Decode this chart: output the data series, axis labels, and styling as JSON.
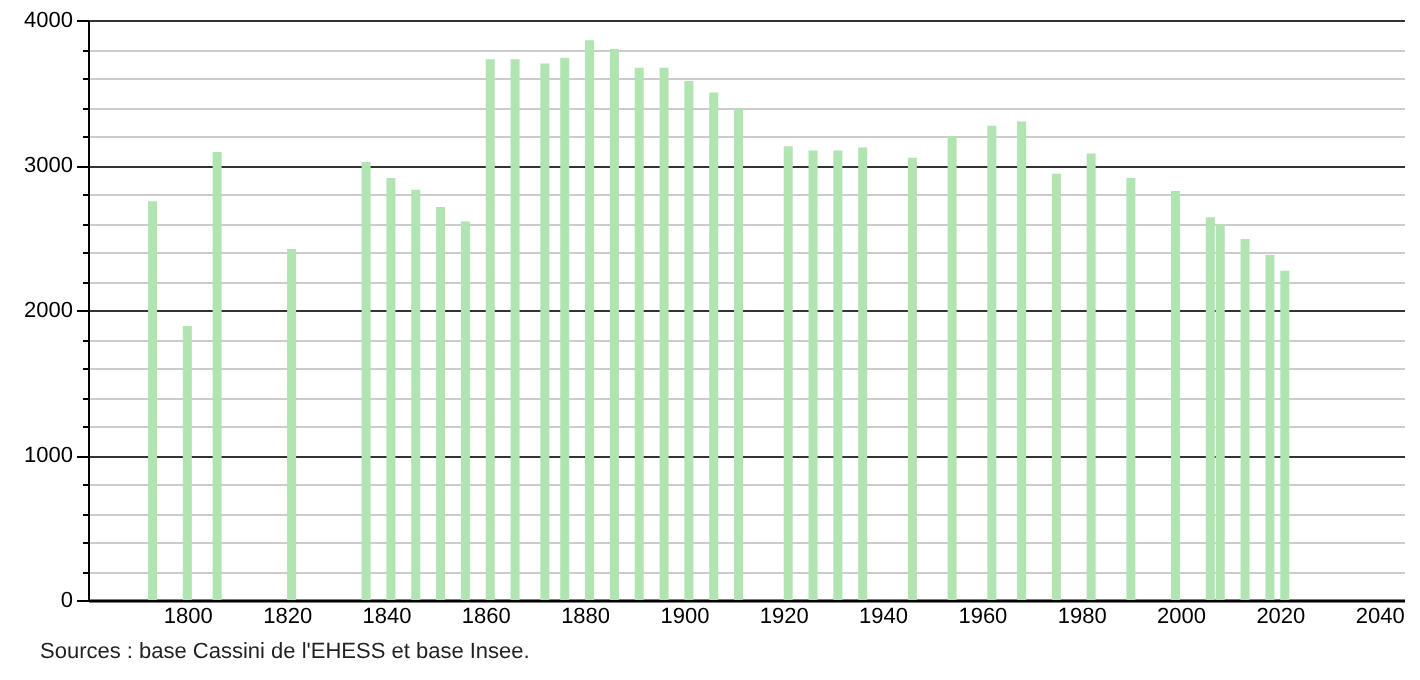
{
  "chart_data": {
    "type": "bar",
    "x": [
      1793,
      1800,
      1806,
      1821,
      1836,
      1841,
      1846,
      1851,
      1856,
      1861,
      1866,
      1872,
      1876,
      1881,
      1886,
      1891,
      1896,
      1901,
      1906,
      1911,
      1921,
      1926,
      1931,
      1936,
      1946,
      1954,
      1962,
      1968,
      1975,
      1982,
      1990,
      1999,
      2006,
      2008,
      2013,
      2018,
      2021
    ],
    "values": [
      2750,
      1890,
      3090,
      2420,
      3020,
      2910,
      2830,
      2710,
      2610,
      3730,
      3730,
      3700,
      3740,
      3860,
      3800,
      3670,
      3670,
      3580,
      3500,
      3390,
      3130,
      3100,
      3100,
      3120,
      3050,
      3200,
      3270,
      3300,
      2940,
      3080,
      2910,
      2820,
      2640,
      2590,
      2490,
      2380,
      2270
    ],
    "color": "#b0e4b0",
    "xlim": [
      1780,
      2045
    ],
    "xticks": [
      1800,
      1820,
      1840,
      1860,
      1880,
      1900,
      1920,
      1940,
      1960,
      1980,
      2000,
      2020,
      2040
    ],
    "ylim": [
      0,
      4000
    ],
    "yticks": [
      0,
      {
        "value": 200,
        "label": null
      },
      {
        "value": 400,
        "label": null
      },
      {
        "value": 600,
        "label": null
      },
      {
        "value": 800,
        "label": null
      },
      1000,
      {
        "value": 1200,
        "label": null
      },
      {
        "value": 1400,
        "label": null
      },
      {
        "value": 1600,
        "label": null
      },
      {
        "value": 1800,
        "label": null
      },
      2000,
      {
        "value": 2200,
        "label": null
      },
      {
        "value": 2400,
        "label": null
      },
      {
        "value": 2600,
        "label": null
      },
      {
        "value": 2800,
        "label": null
      },
      3000,
      {
        "value": 3200,
        "label": null
      },
      {
        "value": 3400,
        "label": null
      },
      {
        "value": 3600,
        "label": null
      },
      {
        "value": 3800,
        "label": null
      },
      4000
    ],
    "grid": "y",
    "annotations": [
      "Sources : base Cassini de l'EHESS et base Insee."
    ]
  }
}
